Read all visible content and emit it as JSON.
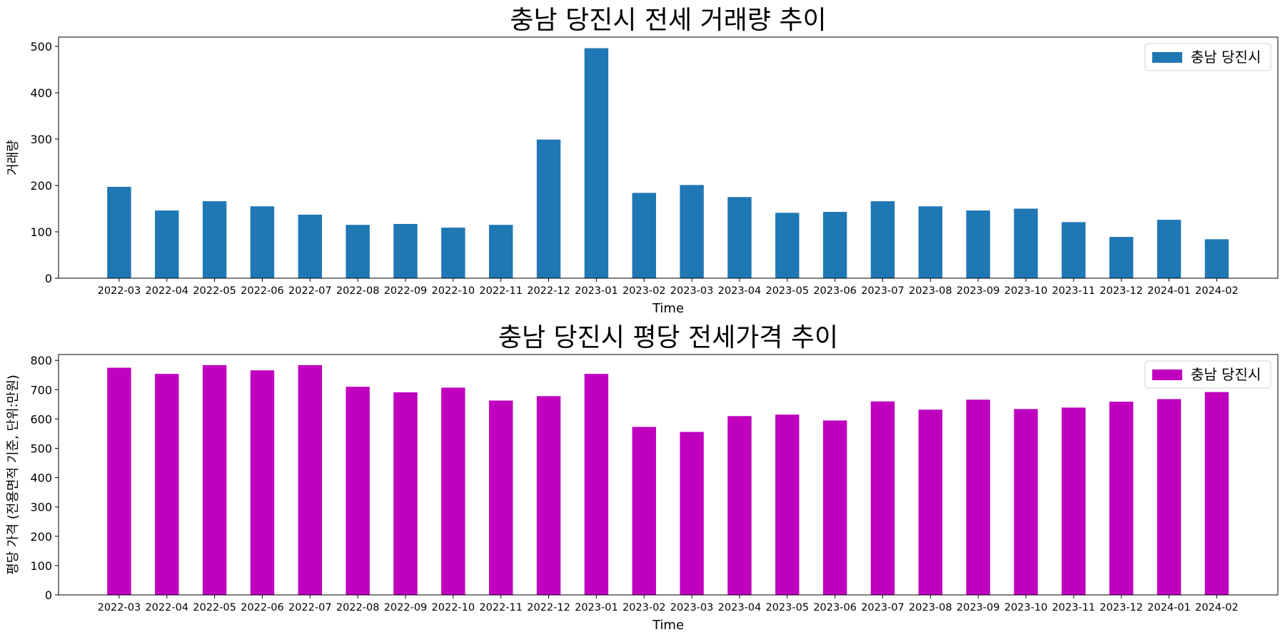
{
  "chart_data": [
    {
      "type": "bar",
      "title": "충남 당진시 전세 거래량 추이",
      "xlabel": "Time",
      "ylabel": "거래량",
      "ylim": [
        0,
        520
      ],
      "yticks": [
        0,
        100,
        200,
        300,
        400,
        500
      ],
      "categories": [
        "2022-03",
        "2022-04",
        "2022-05",
        "2022-06",
        "2022-07",
        "2022-08",
        "2022-09",
        "2022-10",
        "2022-11",
        "2022-12",
        "2023-01",
        "2023-02",
        "2023-03",
        "2023-04",
        "2023-05",
        "2023-06",
        "2023-07",
        "2023-08",
        "2023-09",
        "2023-10",
        "2023-11",
        "2023-12",
        "2024-01",
        "2024-02"
      ],
      "series": [
        {
          "name": "충남 당진시",
          "color": "#1f77b4",
          "values": [
            197,
            146,
            166,
            155,
            137,
            115,
            117,
            109,
            115,
            299,
            496,
            184,
            201,
            175,
            141,
            143,
            166,
            155,
            146,
            150,
            121,
            89,
            126,
            84
          ]
        }
      ],
      "legend": "top-right",
      "grid": false
    },
    {
      "type": "bar",
      "title": "충남 당진시 평당 전세가격 추이",
      "xlabel": "Time",
      "ylabel": "평당 가격 (전용면적 기준, 단위:만원)",
      "ylim": [
        0,
        820
      ],
      "yticks": [
        0,
        100,
        200,
        300,
        400,
        500,
        600,
        700,
        800
      ],
      "categories": [
        "2022-03",
        "2022-04",
        "2022-05",
        "2022-06",
        "2022-07",
        "2022-08",
        "2022-09",
        "2022-10",
        "2022-11",
        "2022-12",
        "2023-01",
        "2023-02",
        "2023-03",
        "2023-04",
        "2023-05",
        "2023-06",
        "2023-07",
        "2023-08",
        "2023-09",
        "2023-10",
        "2023-11",
        "2023-12",
        "2024-01",
        "2024-02"
      ],
      "series": [
        {
          "name": "충남 당진시",
          "color": "#bf00bf",
          "values": [
            775,
            754,
            784,
            766,
            784,
            710,
            691,
            707,
            663,
            678,
            754,
            573,
            556,
            610,
            615,
            595,
            660,
            632,
            666,
            634,
            639,
            659,
            668,
            692
          ]
        }
      ],
      "legend": "top-right",
      "grid": false
    }
  ]
}
